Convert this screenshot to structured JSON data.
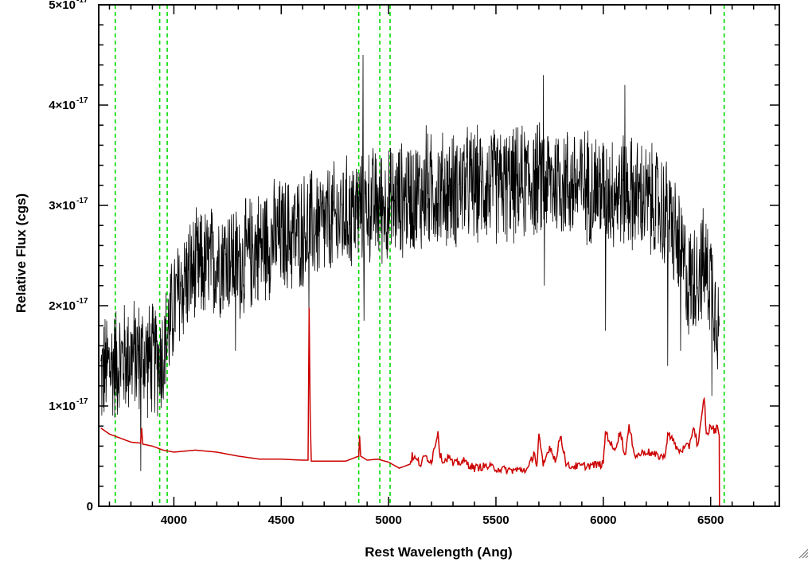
{
  "chart_data": {
    "type": "line",
    "xlabel": "Rest Wavelength (Ang)",
    "ylabel": "Relative Flux (cgs)",
    "xlim": [
      3650,
      6820
    ],
    "ylim": [
      0,
      5e-17
    ],
    "x_ticks": [
      {
        "value": 4000,
        "label": "4000"
      },
      {
        "value": 4500,
        "label": "4500"
      },
      {
        "value": 5000,
        "label": "5000"
      },
      {
        "value": 5500,
        "label": "5500"
      },
      {
        "value": 6000,
        "label": "6000"
      },
      {
        "value": 6500,
        "label": "6500"
      }
    ],
    "y_ticks": [
      {
        "value": 0,
        "label": "0",
        "exponent": ""
      },
      {
        "value": 1e-17,
        "label": "1×10",
        "exponent": "-17"
      },
      {
        "value": 2e-17,
        "label": "2×10",
        "exponent": "-17"
      },
      {
        "value": 3e-17,
        "label": "3×10",
        "exponent": "-17"
      },
      {
        "value": 4e-17,
        "label": "4×10",
        "exponent": "-17"
      },
      {
        "value": 5e-17,
        "label": "5×10",
        "exponent": "-17"
      }
    ],
    "emission_line_markers": [
      3727,
      3934,
      3969,
      4861,
      4959,
      5007,
      6563
    ],
    "series": [
      {
        "color": "#000000",
        "x": [
          3660,
          3700,
          3750,
          3800,
          3850,
          3900,
          3950,
          4000,
          4050,
          4100,
          4150,
          4200,
          4250,
          4300,
          4350,
          4400,
          4450,
          4500,
          4550,
          4600,
          4650,
          4700,
          4750,
          4800,
          4850,
          4900,
          4950,
          5000,
          5050,
          5100,
          5150,
          5200,
          5250,
          5300,
          5350,
          5400,
          5450,
          5500,
          5550,
          5600,
          5650,
          5700,
          5750,
          5800,
          5850,
          5900,
          5950,
          6000,
          6050,
          6100,
          6150,
          6200,
          6250,
          6300,
          6350,
          6400,
          6450,
          6500,
          6540
        ],
        "values": [
          1.3e-17,
          1.4e-17,
          1.45e-17,
          1.5e-17,
          1.5e-17,
          1.45e-17,
          1.5e-17,
          2e-17,
          2.25e-17,
          2.35e-17,
          2.4e-17,
          2.45e-17,
          2.5e-17,
          2.4e-17,
          2.5e-17,
          2.6e-17,
          2.65e-17,
          2.7e-17,
          2.7e-17,
          2.75e-17,
          2.8e-17,
          2.8e-17,
          2.85e-17,
          2.9e-17,
          2.95e-17,
          3e-17,
          3e-17,
          3e-17,
          3.05e-17,
          3.1e-17,
          3.1e-17,
          3.15e-17,
          3.15e-17,
          3.15e-17,
          3.2e-17,
          3.2e-17,
          3.2e-17,
          3.2e-17,
          3.2e-17,
          3.2e-17,
          3.25e-17,
          3.25e-17,
          3.25e-17,
          3.25e-17,
          3.2e-17,
          3.2e-17,
          3.2e-17,
          3.15e-17,
          3.15e-17,
          3.15e-17,
          3.1e-17,
          3.05e-17,
          3e-17,
          2.9e-17,
          2.6e-17,
          2.2e-17,
          2.4e-17,
          2.3e-17,
          1.8e-17
        ],
        "spikes": [
          [
            3845,
            3.5e-18
          ],
          [
            4287,
            1.55e-17
          ],
          [
            4628,
            1.9e-17
          ],
          [
            4880,
            4.5e-17
          ],
          [
            4885,
            1.85e-17
          ],
          [
            5175,
            3.8e-17
          ],
          [
            5720,
            4.3e-17
          ],
          [
            5725,
            2.2e-17
          ],
          [
            6010,
            1.75e-17
          ],
          [
            6100,
            4.2e-17
          ],
          [
            6300,
            1.4e-17
          ],
          [
            6360,
            1.55e-17
          ],
          [
            6505,
            1.1e-17
          ]
        ]
      },
      {
        "color": "#cc0000",
        "x": [
          3660,
          3700,
          3750,
          3800,
          3845,
          3850,
          3855,
          3900,
          3950,
          4000,
          4050,
          4100,
          4150,
          4200,
          4300,
          4400,
          4500,
          4600,
          4625,
          4630,
          4635,
          4640,
          4700,
          4800,
          4861,
          4865,
          4870,
          4900,
          4950,
          5000,
          5050,
          5100,
          5110,
          5150,
          5170,
          5200,
          5230,
          5240,
          5260,
          5280,
          5300,
          5350,
          5400,
          5450,
          5500,
          5550,
          5600,
          5650,
          5680,
          5690,
          5700,
          5720,
          5750,
          5780,
          5800,
          5830,
          5900,
          6000,
          6010,
          6050,
          6080,
          6100,
          6120,
          6150,
          6200,
          6250,
          6290,
          6300,
          6350,
          6400,
          6420,
          6440,
          6460,
          6470,
          6480,
          6500,
          6520,
          6535,
          6540,
          6541,
          6800
        ],
        "values": [
          7.8e-18,
          7.2e-18,
          6.8e-18,
          6.4e-18,
          6.3e-18,
          7.8e-18,
          6.2e-18,
          6e-18,
          5.6e-18,
          5.4e-18,
          5.5e-18,
          5.6e-18,
          5.5e-18,
          5.4e-18,
          5e-18,
          4.7e-18,
          4.7e-18,
          4.6e-18,
          4.6e-18,
          1.98e-17,
          9e-18,
          4.5e-18,
          4.5e-18,
          4.5e-18,
          5e-18,
          7e-18,
          5e-18,
          4.6e-18,
          4.7e-18,
          4.4e-18,
          3.8e-18,
          4.2e-18,
          5e-18,
          4.2e-18,
          5e-18,
          4.5e-18,
          7.5e-18,
          5e-18,
          4.5e-18,
          5e-18,
          4.2e-18,
          4.5e-18,
          3.8e-18,
          4e-18,
          3.8e-18,
          3.6e-18,
          3.6e-18,
          3.7e-18,
          5.5e-18,
          3.8e-18,
          7e-18,
          4e-18,
          6e-18,
          4.5e-18,
          7.2e-18,
          4e-18,
          4e-18,
          4.2e-18,
          7.5e-18,
          5.5e-18,
          7.5e-18,
          5e-18,
          7.8e-18,
          5e-18,
          5.5e-18,
          5e-18,
          5e-18,
          7.5e-18,
          5.5e-18,
          6e-18,
          8e-18,
          6e-18,
          9e-18,
          1.1e-17,
          7e-18,
          8e-18,
          7.5e-18,
          8e-18,
          7e-18,
          0.0,
          0.0
        ]
      }
    ],
    "colors": {
      "marker": "#00dd00",
      "flux": "#000000",
      "model": "#cc0000"
    }
  }
}
